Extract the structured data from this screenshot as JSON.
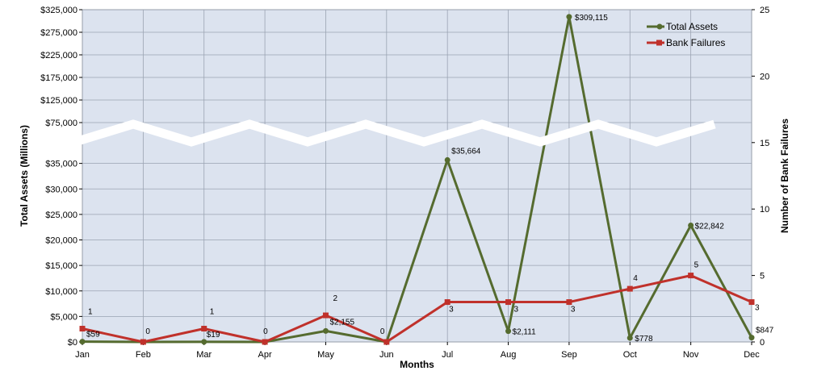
{
  "chart_data": {
    "type": "line",
    "title": "",
    "xlabel": "Months",
    "ylabel": "Total Assets (Millions)",
    "y2label": "Number of Bank Failures",
    "categories": [
      "Jan",
      "Feb",
      "Mar",
      "Apr",
      "May",
      "Jun",
      "Jul",
      "Aug",
      "Sep",
      "Oct",
      "Nov",
      "Dec"
    ],
    "series": [
      {
        "name": "Total Assets",
        "axis": "left",
        "color": "#556b2f",
        "marker": "circle",
        "values": [
          59,
          0,
          19,
          0,
          2155,
          0,
          35664,
          2111,
          309115,
          778,
          22842,
          847
        ],
        "labels": [
          "$59",
          "",
          "$19",
          "",
          "$2,155",
          "",
          "$35,664",
          "$2,111",
          "$309,115",
          "$778",
          "$22,842",
          "$847"
        ]
      },
      {
        "name": "Bank Failures",
        "axis": "right",
        "color": "#c0312b",
        "marker": "square",
        "values": [
          1,
          0,
          1,
          0,
          2,
          0,
          3,
          3,
          3,
          4,
          5,
          3
        ],
        "labels": [
          "1",
          "0",
          "1",
          "0",
          "2",
          "0",
          "3",
          "3",
          "3",
          "4",
          "5",
          "3"
        ]
      }
    ],
    "y_left": {
      "broken": true,
      "lower_range": [
        0,
        40000
      ],
      "lower_ticks": [
        "$0",
        "$5,000",
        "$10,000",
        "$15,000",
        "$20,000",
        "$25,000",
        "$30,000",
        "$35,000"
      ],
      "lower_tick_values": [
        0,
        5000,
        10000,
        15000,
        20000,
        25000,
        30000,
        35000
      ],
      "upper_range": [
        75000,
        325000
      ],
      "upper_ticks": [
        "$75,000",
        "$125,000",
        "$175,000",
        "$225,000",
        "$275,000",
        "$325,000"
      ],
      "upper_tick_values": [
        75000,
        125000,
        175000,
        225000,
        275000,
        325000
      ]
    },
    "y_right": {
      "range": [
        0,
        25
      ],
      "ticks": [
        "0",
        "5",
        "10",
        "15",
        "20",
        "25"
      ],
      "tick_values": [
        0,
        5,
        10,
        15,
        20,
        25
      ]
    },
    "grid": true,
    "legend": "top-right",
    "plot_background": "#dce3ef"
  }
}
